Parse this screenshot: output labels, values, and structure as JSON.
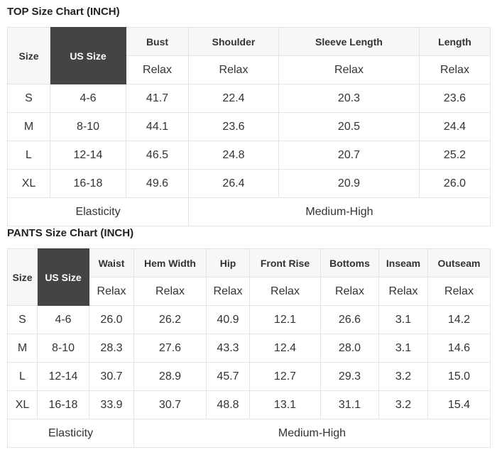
{
  "top": {
    "title": "TOP Size Chart (INCH)",
    "size_header": "Size",
    "us_size_header": "US Size",
    "measure_headers": [
      "Bust",
      "Shoulder",
      "Sleeve Length",
      "Length"
    ],
    "fit_labels": [
      "Relax",
      "Relax",
      "Relax",
      "Relax"
    ],
    "rows": [
      {
        "size": "S",
        "us": "4-6",
        "values": [
          "41.7",
          "22.4",
          "20.3",
          "23.6"
        ]
      },
      {
        "size": "M",
        "us": "8-10",
        "values": [
          "44.1",
          "23.6",
          "20.5",
          "24.4"
        ]
      },
      {
        "size": "L",
        "us": "12-14",
        "values": [
          "46.5",
          "24.8",
          "20.7",
          "25.2"
        ]
      },
      {
        "size": "XL",
        "us": "16-18",
        "values": [
          "49.6",
          "26.4",
          "20.9",
          "26.0"
        ]
      }
    ],
    "elasticity_label": "Elasticity",
    "elasticity_value": "Medium-High"
  },
  "pants": {
    "title": "PANTS Size Chart (INCH)",
    "size_header": "Size",
    "us_size_header": "US Size",
    "measure_headers": [
      "Waist",
      "Hem Width",
      "Hip",
      "Front Rise",
      "Bottoms",
      "Inseam",
      "Outseam"
    ],
    "fit_labels": [
      "Relax",
      "Relax",
      "Relax",
      "Relax",
      "Relax",
      "Relax",
      "Relax"
    ],
    "rows": [
      {
        "size": "S",
        "us": "4-6",
        "values": [
          "26.0",
          "26.2",
          "40.9",
          "12.1",
          "26.6",
          "3.1",
          "14.2"
        ]
      },
      {
        "size": "M",
        "us": "8-10",
        "values": [
          "28.3",
          "27.6",
          "43.3",
          "12.4",
          "28.0",
          "3.1",
          "14.6"
        ]
      },
      {
        "size": "L",
        "us": "12-14",
        "values": [
          "30.7",
          "28.9",
          "45.7",
          "12.7",
          "29.3",
          "3.2",
          "15.0"
        ]
      },
      {
        "size": "XL",
        "us": "16-18",
        "values": [
          "33.9",
          "30.7",
          "48.8",
          "13.1",
          "31.1",
          "3.2",
          "15.4"
        ]
      }
    ],
    "elasticity_label": "Elasticity",
    "elasticity_value": "Medium-High"
  },
  "colors": {
    "header_bg": "#f7f7f7",
    "us_size_bg": "#444444",
    "border": "#e3e3e3"
  }
}
